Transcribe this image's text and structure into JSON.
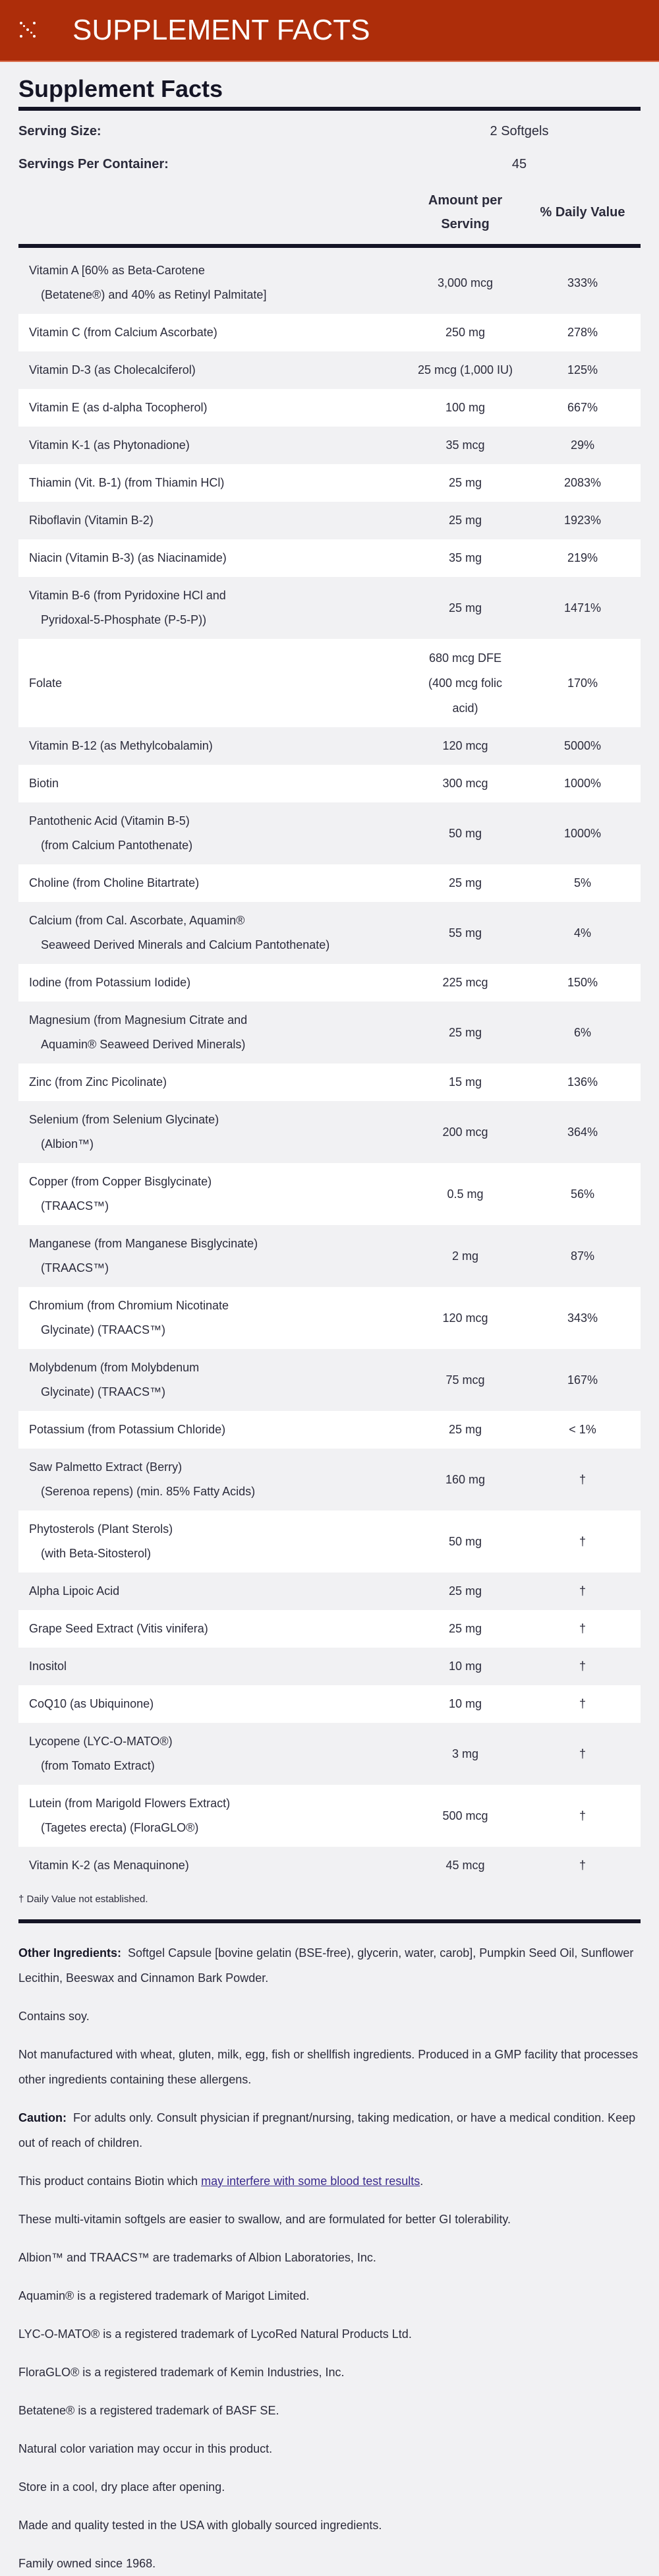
{
  "banner": {
    "title": "SUPPLEMENT FACTS",
    "icon": "sparkle-dots-icon"
  },
  "facts": {
    "title": "Supplement Facts",
    "serving_size_label": "Serving Size:",
    "serving_size": "2 Softgels",
    "servings_label": "Servings Per Container:",
    "servings": "45",
    "col_amount_1": "Amount per",
    "col_amount_2": "Serving",
    "col_dv": "% Daily Value",
    "rows": [
      {
        "name": "Vitamin A [60% as Beta-Carotene",
        "sub": "(Betatene®) and 40% as Retinyl Palmitate]",
        "amount": "3,000 mcg",
        "dv": "333%"
      },
      {
        "name": "Vitamin C (from Calcium Ascorbate)",
        "amount": "250 mg",
        "dv": "278%"
      },
      {
        "name": "Vitamin D-3 (as Cholecalciferol)",
        "amount": "25 mcg (1,000 IU)",
        "dv": "125%"
      },
      {
        "name": "Vitamin E (as d-alpha Tocopherol)",
        "amount": "100 mg",
        "dv": "667%"
      },
      {
        "name": "Vitamin K-1 (as Phytonadione)",
        "amount": "35 mcg",
        "dv": "29%"
      },
      {
        "name": "Thiamin (Vit. B-1) (from Thiamin HCl)",
        "amount": "25 mg",
        "dv": "2083%"
      },
      {
        "name": "Riboflavin (Vitamin B-2)",
        "amount": "25 mg",
        "dv": "1923%"
      },
      {
        "name": "Niacin (Vitamin B-3) (as Niacinamide)",
        "amount": "35 mg",
        "dv": "219%"
      },
      {
        "name": "Vitamin B-6 (from Pyridoxine HCl and",
        "sub": "Pyridoxal-5-Phosphate (P-5-P))",
        "amount": "25 mg",
        "dv": "1471%"
      },
      {
        "name": "Folate",
        "amount": "680 mcg DFE (400 mcg folic acid)",
        "dv": "170%",
        "multi": true
      },
      {
        "name": "Vitamin B-12 (as Methylcobalamin)",
        "amount": "120 mcg",
        "dv": "5000%"
      },
      {
        "name": "Biotin",
        "amount": "300 mcg",
        "dv": "1000%"
      },
      {
        "name": "Pantothenic Acid (Vitamin B-5)",
        "sub": "(from Calcium Pantothenate)",
        "amount": "50 mg",
        "dv": "1000%"
      },
      {
        "name": "Choline (from Choline Bitartrate)",
        "amount": "25 mg",
        "dv": "5%"
      },
      {
        "name": "Calcium (from Cal. Ascorbate, Aquamin®",
        "sub": "Seaweed Derived Minerals and Calcium Pantothenate)",
        "amount": "55 mg",
        "dv": "4%"
      },
      {
        "name": "Iodine (from Potassium Iodide)",
        "amount": "225 mcg",
        "dv": "150%"
      },
      {
        "name": "Magnesium (from Magnesium Citrate and",
        "sub": "Aquamin® Seaweed Derived Minerals)",
        "amount": "25 mg",
        "dv": "6%"
      },
      {
        "name": "Zinc (from Zinc Picolinate)",
        "amount": "15 mg",
        "dv": "136%"
      },
      {
        "name": "Selenium (from Selenium Glycinate)",
        "sub": "(Albion™)",
        "amount": "200 mcg",
        "dv": "364%"
      },
      {
        "name": "Copper (from Copper Bisglycinate)",
        "sub": "(TRAACS™)",
        "amount": "0.5 mg",
        "dv": "56%"
      },
      {
        "name": "Manganese (from Manganese Bisglycinate)",
        "sub": "(TRAACS™)",
        "amount": "2 mg",
        "dv": "87%"
      },
      {
        "name": "Chromium (from Chromium Nicotinate",
        "sub": "Glycinate) (TRAACS™)",
        "amount": "120 mcg",
        "dv": "343%"
      },
      {
        "name": "Molybdenum (from Molybdenum",
        "sub": "Glycinate) (TRAACS™)",
        "amount": "75 mcg",
        "dv": "167%"
      },
      {
        "name": "Potassium (from Potassium Chloride)",
        "amount": "25 mg",
        "dv": "< 1%"
      },
      {
        "name": "Saw Palmetto Extract (Berry)",
        "sub": "(Serenoa repens) (min. 85% Fatty Acids)",
        "amount": "160 mg",
        "dv": "†"
      },
      {
        "name": "Phytosterols (Plant Sterols)",
        "sub": "(with Beta-Sitosterol)",
        "amount": "50 mg",
        "dv": "†"
      },
      {
        "name": "Alpha Lipoic Acid",
        "amount": "25 mg",
        "dv": "†"
      },
      {
        "name": "Grape Seed Extract (Vitis vinifera)",
        "amount": "25 mg",
        "dv": "†"
      },
      {
        "name": "Inositol",
        "amount": "10 mg",
        "dv": "†"
      },
      {
        "name": "CoQ10 (as Ubiquinone)",
        "amount": "10 mg",
        "dv": "†"
      },
      {
        "name": "Lycopene (LYC-O-MATO®)",
        "sub": "(from Tomato Extract)",
        "amount": "3 mg",
        "dv": "†"
      },
      {
        "name": "Lutein (from Marigold Flowers Extract)",
        "sub": "(Tagetes erecta) (FloraGLO®)",
        "amount": "500 mcg",
        "dv": "†"
      },
      {
        "name": "Vitamin K-2 (as Menaquinone)",
        "amount": "45 mcg",
        "dv": "†"
      }
    ],
    "footnote": "† Daily Value not established."
  },
  "info": {
    "other_label": "Other Ingredients:",
    "other_text": "Softgel Capsule [bovine gelatin (BSE-free), glycerin, water, carob], Pumpkin Seed Oil, Sunflower Lecithin, Beeswax and Cinnamon Bark Powder.",
    "soy": "Contains soy.",
    "allergens": "Not manufactured with wheat, gluten, milk, egg, fish or shellfish ingredients. Produced in a GMP facility that processes other ingredients containing these allergens.",
    "caution_label": "Caution:",
    "caution_text": "For adults only. Consult physician if pregnant/nursing, taking medication, or have a medical condition. Keep out of reach of children.",
    "biotin_text": "This product contains Biotin which ",
    "biotin_link": "may interfere with some blood test results",
    "biotin_end": ".",
    "lines": [
      "These multi-vitamin softgels are easier to swallow, and are formulated for better GI tolerability.",
      "Albion™ and TRAACS™ are trademarks of Albion Laboratories, Inc.",
      "Aquamin® is a registered trademark of Marigot Limited.",
      "LYC-O-MATO® is a registered trademark of LycoRed Natural Products Ltd.",
      "FloraGLO® is a registered trademark of Kemin Industries, Inc.",
      "Betatene® is a registered trademark of BASF SE.",
      "Natural color variation may occur in this product.",
      "Store in a cool, dry place after opening.",
      "Made and quality tested in the USA with globally sourced ingredients.",
      "Family owned since 1968."
    ]
  },
  "colors": {
    "banner": "#ad2d0a",
    "background": "#f1f1f3",
    "text": "#2b2b3b",
    "link": "#3a2a8c"
  }
}
